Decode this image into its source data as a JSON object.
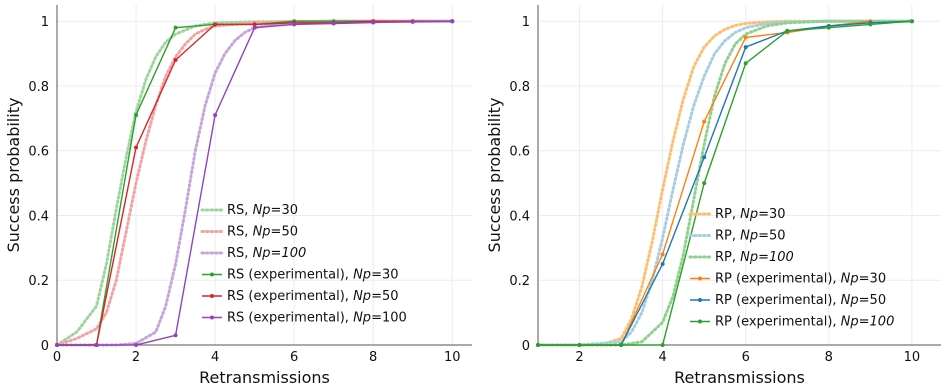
{
  "chart_data": [
    {
      "type": "line",
      "xlabel": "Retransmissions",
      "ylabel": "Success probability",
      "xlim": [
        0,
        10.5
      ],
      "ylim": [
        0,
        1.05
      ],
      "xticks": [
        0,
        2,
        4,
        6,
        8,
        10
      ],
      "yticks": [
        0,
        0.2,
        0.4,
        0.6,
        0.8,
        1
      ],
      "ytick_labels": [
        "0",
        "0.2",
        "0.4",
        "0.6",
        "0.8",
        "1"
      ],
      "grid": true,
      "legend_position": "bottom-right",
      "series": [
        {
          "name": "RS, Np=30",
          "label_prefix": "RS, ",
          "label_italic": "Np",
          "label_suffix": "=30",
          "style": "dotted",
          "color": "#9fd49f",
          "x": [
            0,
            0.5,
            1,
            1.25,
            1.5,
            1.75,
            2,
            2.25,
            2.5,
            2.75,
            3,
            3.5,
            4,
            5,
            6,
            7,
            8,
            9,
            10
          ],
          "y": [
            0,
            0.04,
            0.12,
            0.25,
            0.42,
            0.58,
            0.72,
            0.82,
            0.89,
            0.935,
            0.96,
            0.985,
            0.995,
            0.998,
            0.999,
            1,
            1,
            1,
            1
          ]
        },
        {
          "name": "RS, Np=50",
          "label_prefix": "RS, ",
          "label_italic": "Np",
          "label_suffix": "=50",
          "style": "dotted",
          "color": "#f4a3a3",
          "x": [
            0,
            0.5,
            1,
            1.25,
            1.5,
            1.75,
            2,
            2.25,
            2.5,
            2.75,
            3,
            3.25,
            3.5,
            3.75,
            4,
            5,
            6,
            7,
            8,
            9,
            10
          ],
          "y": [
            0,
            0.02,
            0.05,
            0.1,
            0.2,
            0.35,
            0.5,
            0.63,
            0.74,
            0.83,
            0.89,
            0.93,
            0.96,
            0.975,
            0.985,
            0.995,
            0.999,
            1,
            1,
            1,
            1
          ]
        },
        {
          "name": "RS, Np=100",
          "label_prefix": "RS, ",
          "label_italic": "Np=100",
          "label_suffix": "",
          "style": "dotted",
          "color": "#c6a5d8",
          "x": [
            0,
            1,
            1.5,
            2,
            2.5,
            2.75,
            3,
            3.25,
            3.5,
            3.75,
            4,
            4.25,
            4.5,
            4.75,
            5,
            5.5,
            6,
            7,
            8,
            9,
            10
          ],
          "y": [
            0,
            0,
            0,
            0.005,
            0.04,
            0.12,
            0.25,
            0.42,
            0.6,
            0.74,
            0.84,
            0.9,
            0.94,
            0.965,
            0.98,
            0.99,
            0.995,
            1,
            1,
            1,
            1
          ]
        },
        {
          "name": "RS (experimental), Np=30",
          "label_prefix": "RS (experimental), ",
          "label_italic": "Np",
          "label_suffix": "=30",
          "style": "solid",
          "color": "#2ca02c",
          "x": [
            0,
            1,
            2,
            3,
            4,
            5,
            6,
            7,
            8,
            9,
            10
          ],
          "y": [
            0,
            0,
            0.71,
            0.98,
            0.99,
            0.99,
            1,
            1,
            1,
            1,
            1
          ]
        },
        {
          "name": "RS (experimental), Np=50",
          "label_prefix": "RS (experimental), ",
          "label_italic": "Np",
          "label_suffix": "=50",
          "style": "solid",
          "color": "#d62728",
          "x": [
            0,
            1,
            2,
            3,
            4,
            5,
            6,
            7,
            8,
            9,
            10
          ],
          "y": [
            0,
            0,
            0.61,
            0.88,
            0.99,
            0.99,
            0.995,
            0.995,
            1,
            1,
            1
          ]
        },
        {
          "name": "RS (experimental), Np=100",
          "label_prefix": "RS (experimental), ",
          "label_italic": "Np",
          "label_suffix": "=100",
          "style": "solid",
          "color": "#8e44bd",
          "x": [
            0,
            1,
            2,
            3,
            4,
            5,
            6,
            7,
            8,
            9,
            10
          ],
          "y": [
            0,
            0,
            0,
            0.03,
            0.71,
            0.98,
            0.99,
            0.993,
            0.996,
            0.998,
            1
          ]
        }
      ]
    },
    {
      "type": "line",
      "xlabel": "Retransmissions",
      "ylabel": "Success probability",
      "xlim": [
        1,
        10.7
      ],
      "ylim": [
        0,
        1.05
      ],
      "xticks": [
        2,
        4,
        6,
        8,
        10
      ],
      "yticks": [
        0,
        0.2,
        0.4,
        0.6,
        0.8,
        1
      ],
      "ytick_labels": [
        "0",
        "0.2",
        "0.4",
        "0.6",
        "0.8",
        "1"
      ],
      "grid": true,
      "legend_position": "bottom-right",
      "series": [
        {
          "name": "RP, Np=30",
          "label_prefix": "RP, ",
          "label_italic": "Np",
          "label_suffix": "=30",
          "style": "dotted",
          "color": "#fdbf6f",
          "x": [
            1,
            2,
            2.5,
            3,
            3.25,
            3.5,
            3.75,
            4,
            4.25,
            4.5,
            4.75,
            5,
            5.25,
            5.5,
            5.75,
            6,
            6.5,
            7,
            8,
            9,
            10
          ],
          "y": [
            0,
            0,
            0,
            0.02,
            0.08,
            0.18,
            0.32,
            0.48,
            0.63,
            0.76,
            0.86,
            0.92,
            0.955,
            0.975,
            0.987,
            0.993,
            0.998,
            1,
            1,
            1,
            1
          ]
        },
        {
          "name": "RP, Np=50",
          "label_prefix": "RP, ",
          "label_italic": "Np",
          "label_suffix": "=50",
          "style": "dotted",
          "color": "#a6cee3",
          "x": [
            1,
            2,
            3,
            3.25,
            3.5,
            3.75,
            4,
            4.25,
            4.5,
            4.75,
            5,
            5.25,
            5.5,
            5.75,
            6,
            6.5,
            7,
            8,
            9,
            10
          ],
          "y": [
            0,
            0,
            0.01,
            0.04,
            0.1,
            0.2,
            0.33,
            0.48,
            0.62,
            0.74,
            0.83,
            0.9,
            0.94,
            0.965,
            0.98,
            0.993,
            0.998,
            1,
            1,
            1
          ]
        },
        {
          "name": "RP, Np=100",
          "label_prefix": "RP, ",
          "label_italic": "Np=100",
          "label_suffix": "",
          "style": "dotted",
          "color": "#8fd18f",
          "x": [
            1,
            2,
            3,
            3.5,
            4,
            4.25,
            4.5,
            4.75,
            5,
            5.25,
            5.5,
            5.75,
            6,
            6.5,
            7,
            8,
            9,
            10
          ],
          "y": [
            0,
            0,
            0,
            0.01,
            0.07,
            0.15,
            0.28,
            0.45,
            0.62,
            0.77,
            0.87,
            0.93,
            0.96,
            0.985,
            0.995,
            1,
            1,
            1
          ]
        },
        {
          "name": "RP (experimental), Np=30",
          "label_prefix": "RP (experimental), ",
          "label_italic": "Np",
          "label_suffix": "=30",
          "style": "solid",
          "color": "#ff7f0e",
          "x": [
            1,
            2,
            3,
            4,
            5,
            6,
            7,
            8,
            9
          ],
          "y": [
            0,
            0,
            0,
            0.28,
            0.69,
            0.95,
            0.965,
            0.985,
            1
          ]
        },
        {
          "name": "RP (experimental), Np=50",
          "label_prefix": "RP (experimental), ",
          "label_italic": "Np",
          "label_suffix": "=50",
          "style": "solid",
          "color": "#1f77b4",
          "x": [
            1,
            2,
            3,
            4,
            5,
            6,
            7,
            8,
            9,
            10
          ],
          "y": [
            0,
            0,
            0,
            0.25,
            0.58,
            0.92,
            0.97,
            0.985,
            0.995,
            1
          ]
        },
        {
          "name": "RP (experimental), Np=100",
          "label_prefix": "RP (experimental), ",
          "label_italic": "Np=100",
          "label_suffix": "",
          "style": "solid",
          "color": "#2ca02c",
          "x": [
            1,
            2,
            3,
            4,
            5,
            6,
            7,
            8,
            9,
            10
          ],
          "y": [
            0,
            0,
            0,
            0,
            0.5,
            0.87,
            0.97,
            0.98,
            0.99,
            1
          ]
        }
      ]
    }
  ]
}
